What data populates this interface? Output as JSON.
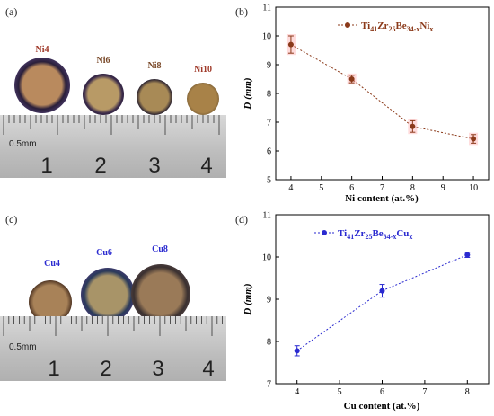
{
  "panels": {
    "a": {
      "label": "(a)",
      "samples": [
        "Ni4",
        "Ni6",
        "Ni8",
        "Ni10"
      ],
      "ruler_unit": "0.5mm",
      "ruler_numbers": [
        "1",
        "2",
        "3",
        "4"
      ]
    },
    "b": {
      "label": "(b)"
    },
    "c": {
      "label": "(c)",
      "samples": [
        "Cu4",
        "Cu6",
        "Cu8"
      ],
      "ruler_unit": "0.5mm",
      "ruler_numbers": [
        "1",
        "2",
        "3",
        "4"
      ]
    },
    "d": {
      "label": "(d)"
    }
  },
  "colors": {
    "ni_series": "#8b3a1a",
    "cu_series": "#2a2ad0",
    "errorbar_ni": "#ff9999"
  },
  "chart_data": [
    {
      "type": "line",
      "panel": "b",
      "series": [
        {
          "name": "Ti41Zr25Be34-xNix",
          "name_parts": {
            "a": "Ti",
            "b": "41",
            "c": "Zr",
            "d": "25",
            "e": "Be",
            "f": "34-x",
            "g": "Ni",
            "h": "x"
          },
          "x": [
            4,
            6,
            8,
            10
          ],
          "y": [
            9.7,
            8.5,
            6.85,
            6.42
          ],
          "err": [
            0.3,
            0.13,
            0.2,
            0.15
          ]
        }
      ],
      "xlabel": "Ni content (at.%)",
      "ylabel": "D (mm)",
      "xlim": [
        3.5,
        10.5
      ],
      "ylim": [
        5,
        11
      ],
      "xticks": [
        4,
        5,
        6,
        7,
        8,
        9,
        10
      ],
      "yticks": [
        5,
        6,
        7,
        8,
        9,
        10,
        11
      ],
      "legend": "top-right"
    },
    {
      "type": "line",
      "panel": "d",
      "series": [
        {
          "name": "Ti41Zr25Be34-xCux",
          "name_parts": {
            "a": "Ti",
            "b": "41",
            "c": "Zr",
            "d": "25",
            "e": "Be",
            "f": "34-x",
            "g": "Cu",
            "h": "x"
          },
          "x": [
            4,
            6,
            8
          ],
          "y": [
            7.78,
            9.2,
            10.05
          ],
          "err": [
            0.12,
            0.15,
            0.06
          ]
        }
      ],
      "xlabel": "Cu content (at.%)",
      "ylabel": "D (mm)",
      "xlim": [
        3.5,
        8.5
      ],
      "ylim": [
        7,
        11
      ],
      "xticks": [
        4,
        5,
        6,
        7,
        8
      ],
      "yticks": [
        7,
        8,
        9,
        10,
        11
      ],
      "legend": "top"
    }
  ]
}
